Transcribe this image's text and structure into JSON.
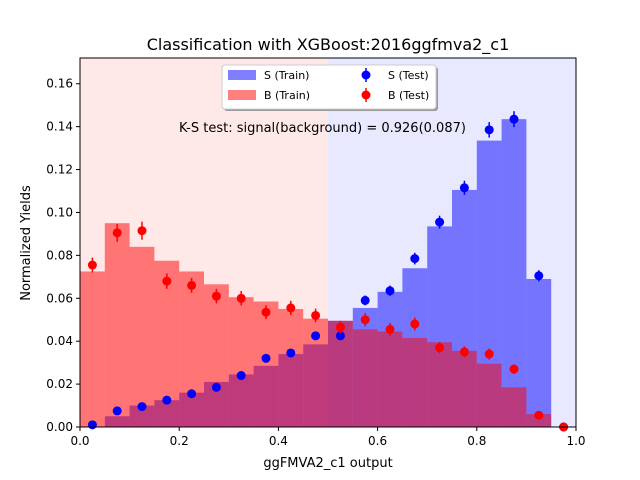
{
  "chart_data": {
    "type": "bar",
    "title": "Classification with XGBoost:2016ggfmva2_c1",
    "xlabel": "ggFMVA2_c1 output",
    "ylabel": "Normalized Yields",
    "xlim": [
      0,
      1
    ],
    "ylim": [
      0,
      0.172
    ],
    "x_ticks": [
      "0.0",
      "0.2",
      "0.4",
      "0.6",
      "0.8",
      "1.0"
    ],
    "y_ticks": [
      "0.00",
      "0.02",
      "0.04",
      "0.06",
      "0.08",
      "0.10",
      "0.12",
      "0.14",
      "0.16"
    ],
    "bin_edges": [
      0,
      0.05,
      0.1,
      0.15,
      0.2,
      0.25,
      0.3,
      0.35,
      0.4,
      0.45,
      0.5,
      0.55,
      0.6,
      0.65,
      0.7,
      0.75,
      0.8,
      0.85,
      0.9,
      0.95,
      1.0
    ],
    "bin_centers": [
      0.025,
      0.075,
      0.125,
      0.175,
      0.225,
      0.275,
      0.325,
      0.375,
      0.425,
      0.475,
      0.525,
      0.575,
      0.625,
      0.675,
      0.725,
      0.775,
      0.825,
      0.875,
      0.925,
      0.975
    ],
    "background_regions": [
      {
        "from": 0,
        "to": 0.5,
        "color": "#ffe8e8"
      },
      {
        "from": 0.5,
        "to": 1.0,
        "color": "#e8e8ff"
      }
    ],
    "annotation": "K-S test: signal(background) = 0.926(0.087)",
    "legend_position": "top-center",
    "series": [
      {
        "name": "S (Train)",
        "kind": "hist",
        "color": "#0000ff",
        "alpha": 0.5,
        "values": [
          0.0,
          0.005,
          0.01,
          0.0125,
          0.016,
          0.021,
          0.0245,
          0.0285,
          0.034,
          0.0385,
          0.0495,
          0.0555,
          0.063,
          0.074,
          0.0935,
          0.1105,
          0.1335,
          0.1435,
          0.069,
          0.0
        ]
      },
      {
        "name": "B (Train)",
        "kind": "hist",
        "color": "#ff0000",
        "alpha": 0.5,
        "values": [
          0.0725,
          0.095,
          0.084,
          0.0775,
          0.0725,
          0.0665,
          0.0605,
          0.0585,
          0.055,
          0.0505,
          0.0495,
          0.0455,
          0.0445,
          0.0415,
          0.0395,
          0.0355,
          0.0295,
          0.0185,
          0.006,
          0.0
        ]
      },
      {
        "name": "S (Test)",
        "kind": "errorbar",
        "color": "#0000ff",
        "values": [
          0.001,
          0.0075,
          0.0095,
          0.0125,
          0.0155,
          0.0185,
          0.024,
          0.032,
          0.0345,
          0.0425,
          0.0425,
          0.059,
          0.0635,
          0.0785,
          0.0955,
          0.1115,
          0.1385,
          0.1435,
          0.0705,
          0.0
        ],
        "errors": [
          0.0005,
          0.001,
          0.001,
          0.001,
          0.0012,
          0.0013,
          0.0014,
          0.0016,
          0.0017,
          0.0019,
          0.0019,
          0.0023,
          0.0024,
          0.0027,
          0.003,
          0.0033,
          0.0036,
          0.0037,
          0.0026,
          0.0003
        ]
      },
      {
        "name": "B (Test)",
        "kind": "errorbar",
        "color": "#ff0000",
        "values": [
          0.0755,
          0.0905,
          0.0915,
          0.068,
          0.066,
          0.061,
          0.06,
          0.0535,
          0.0555,
          0.052,
          0.0465,
          0.05,
          0.0455,
          0.048,
          0.037,
          0.035,
          0.034,
          0.027,
          0.0055,
          0.0
        ],
        "errors": [
          0.0035,
          0.0042,
          0.0042,
          0.0036,
          0.0035,
          0.0034,
          0.0034,
          0.0032,
          0.0033,
          0.0032,
          0.003,
          0.0031,
          0.003,
          0.003,
          0.0027,
          0.0026,
          0.0026,
          0.0023,
          0.001,
          0.0003
        ]
      }
    ]
  }
}
